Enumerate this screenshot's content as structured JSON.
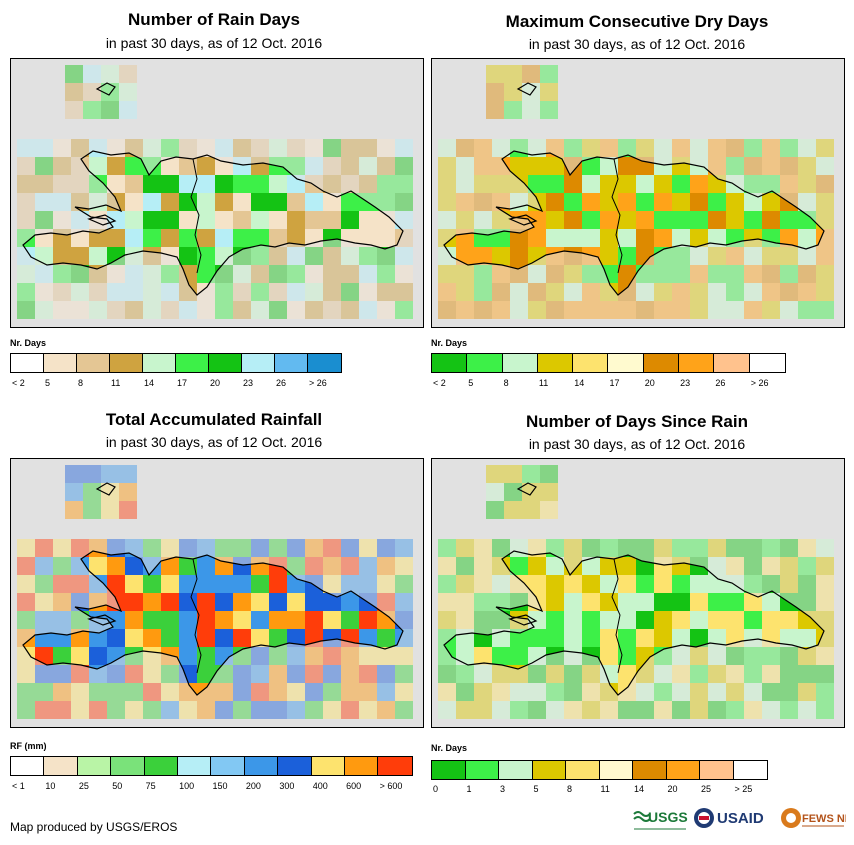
{
  "panels": [
    {
      "title": "Number of Rain Days",
      "subtitle": "in past 30 days, as of 12 Oct. 2016",
      "legend_title": "Nr. Days",
      "legend_labels": [
        "< 2",
        "5",
        "8",
        "11",
        "14",
        "17",
        "20",
        "23",
        "26",
        "> 26"
      ],
      "legend_colors": [
        "#ffffff",
        "#f5e3c8",
        "#e4c694",
        "#cfa340",
        "#c8f5cd",
        "#3df048",
        "#14c314",
        "#b6eef6",
        "#62baf0",
        "#1a8ed0"
      ],
      "grid_colors": [
        "#f5e3c8",
        "#e4c694",
        "#cfa340",
        "#c8f5cd",
        "#3df048",
        "#14c314",
        "#b6eef6"
      ]
    },
    {
      "title": "Maximum Consecutive Dry Days",
      "subtitle": "in past 30 days, as of 12 Oct. 2016",
      "legend_title": "Nr. Days",
      "legend_labels": [
        "< 2",
        "5",
        "8",
        "11",
        "14",
        "17",
        "20",
        "23",
        "26",
        "> 26"
      ],
      "legend_colors": [
        "#14c314",
        "#3df048",
        "#c8f5cd",
        "#dcc800",
        "#fde36e",
        "#fffacf",
        "#dd8a00",
        "#ffa319",
        "#ffc28d",
        "#ffffff"
      ],
      "grid_colors": [
        "#c8f5cd",
        "#3df048",
        "#dcc800",
        "#ffa319",
        "#dd8a00"
      ]
    },
    {
      "title": "Total Accumulated Rainfall",
      "subtitle": "in past 30 days, as of 12 Oct. 2016",
      "legend_title": "RF (mm)",
      "legend_labels": [
        "< 1",
        "10",
        "25",
        "50",
        "75",
        "100",
        "150",
        "200",
        "300",
        "400",
        "600",
        "> 600"
      ],
      "legend_colors": [
        "#ffffff",
        "#f5e3c8",
        "#b9f4a6",
        "#7ae27a",
        "#3bd03b",
        "#b6eef6",
        "#82c8f3",
        "#3c97e8",
        "#1b60da",
        "#fde36e",
        "#ff9a0f",
        "#ff3d0a"
      ],
      "grid_colors": [
        "#1b60da",
        "#3c97e8",
        "#fde36e",
        "#ff9a0f",
        "#ff3d0a",
        "#3bd03b"
      ]
    },
    {
      "title": "Number of Days Since Rain",
      "subtitle": "in past 30 days, as of 12 Oct. 2016",
      "legend_title": "Nr. Days",
      "legend_labels": [
        "0",
        "1",
        "3",
        "5",
        "8",
        "11",
        "14",
        "20",
        "25",
        "> 25"
      ],
      "legend_colors": [
        "#14c314",
        "#3df048",
        "#c8f5cd",
        "#dcc800",
        "#fde36e",
        "#fffacf",
        "#dd8a00",
        "#ffa319",
        "#ffc28d",
        "#ffffff"
      ],
      "grid_colors": [
        "#fde36e",
        "#14c314",
        "#3df048",
        "#dcc800",
        "#c8f5cd"
      ]
    }
  ],
  "credit": "Map produced by USGS/EROS",
  "logos": [
    "USGS",
    "USAID",
    "FEWS NET"
  ]
}
